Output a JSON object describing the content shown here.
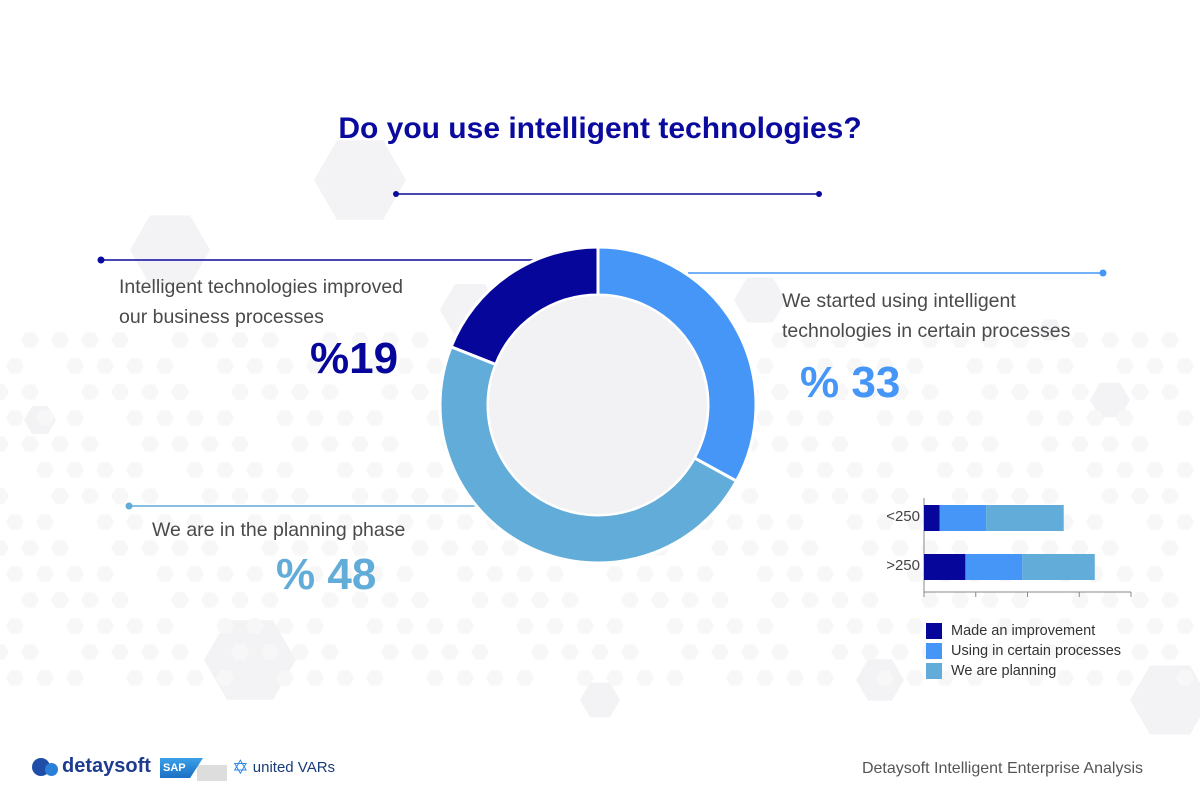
{
  "title": "Do you use intelligent technologies?",
  "labels": {
    "improved_line1": "Intelligent technologies improved",
    "improved_line2": "our business processes",
    "improved_pct": "%19",
    "started_line1": "We started using intelligent",
    "started_line2": "technologies in certain processes",
    "started_pct": "% 33",
    "planning_line1": "We are in the planning phase",
    "planning_pct": "% 48"
  },
  "colors": {
    "title": "#0a0a9e",
    "improvement": "#06069a",
    "certain": "#4596f6",
    "planning": "#62acd9",
    "donut_center": "#f2f2f4"
  },
  "chart_data": [
    {
      "type": "pie",
      "subtype": "donut",
      "categories": [
        "Intelligent technologies improved our business processes",
        "We started using intelligent technologies in certain processes",
        "We are in the planning phase"
      ],
      "values": [
        19,
        33,
        48
      ]
    },
    {
      "type": "bar",
      "orientation": "horizontal",
      "stacked": true,
      "categories": [
        "<250",
        ">250"
      ],
      "series": [
        {
          "name": "Made an improvement",
          "values": [
            3,
            8
          ]
        },
        {
          "name": "Using in certain processes",
          "values": [
            9,
            11
          ]
        },
        {
          "name": "We are planning",
          "values": [
            15,
            14
          ]
        }
      ],
      "xlim": [
        0,
        40
      ],
      "grid": false,
      "legend": "bottom",
      "legend_entries": [
        "Made an improvement",
        "Using in certain processes",
        "We are planning"
      ]
    }
  ],
  "footer": {
    "right_text": "Detaysoft Intelligent Enterprise Analysis",
    "logo_detaysoft": "detaysoft",
    "logo_sap": "SAP",
    "logo_uv": "united VARs"
  }
}
